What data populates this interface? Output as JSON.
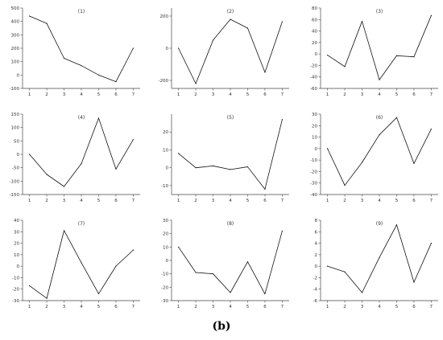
{
  "caption": "(b)",
  "chart_data": [
    {
      "type": "line",
      "title": "(1)",
      "x": [
        1,
        2,
        3,
        4,
        5,
        6,
        7
      ],
      "values": [
        440,
        385,
        125,
        70,
        0,
        -50,
        200
      ],
      "ylim": [
        -100,
        500
      ],
      "yticks": [
        -100,
        0,
        100,
        200,
        300,
        400,
        500
      ],
      "ytick_labels": [
        "-100",
        "0",
        "100",
        "200",
        "300",
        "400",
        "500"
      ],
      "xticks": [
        1,
        2,
        3,
        4,
        5,
        6,
        7
      ]
    },
    {
      "type": "line",
      "title": "(2)",
      "x": [
        1,
        2,
        3,
        4,
        5,
        6,
        7
      ],
      "values": [
        0,
        -220,
        50,
        180,
        125,
        -150,
        165
      ],
      "ylim": [
        -250,
        250
      ],
      "yticks": [
        -200,
        0,
        200
      ],
      "ytick_labels": [
        "-200",
        "0",
        "200"
      ],
      "xticks": [
        1,
        2,
        3,
        4,
        5,
        6,
        7
      ]
    },
    {
      "type": "line",
      "title": "(3)",
      "x": [
        1,
        2,
        3,
        4,
        5,
        6,
        7
      ],
      "values": [
        -2,
        -22,
        57,
        -45,
        -3,
        -5,
        67
      ],
      "ylim": [
        -60,
        80
      ],
      "yticks": [
        -60,
        -40,
        -20,
        0,
        20,
        40,
        60,
        80
      ],
      "ytick_labels": [
        "-60",
        "-40",
        "-20",
        "0",
        "20",
        "40",
        "60",
        "80"
      ],
      "xticks": [
        1,
        2,
        3,
        4,
        5,
        6,
        7
      ]
    },
    {
      "type": "line",
      "title": "(4)",
      "x": [
        1,
        2,
        3,
        4,
        5,
        6,
        7
      ],
      "values": [
        0,
        -75,
        -120,
        -35,
        135,
        -55,
        55
      ],
      "ylim": [
        -150,
        150
      ],
      "yticks": [
        -150,
        -100,
        -50,
        0,
        50,
        100,
        150
      ],
      "ytick_labels": [
        "-150",
        "-100",
        "-50",
        "0",
        "50",
        "100",
        "150"
      ],
      "xticks": [
        1,
        2,
        3,
        4,
        5,
        6,
        7
      ]
    },
    {
      "type": "line",
      "title": "(5)",
      "x": [
        1,
        2,
        3,
        4,
        5,
        6,
        7
      ],
      "values": [
        8,
        0,
        1,
        -1,
        0.5,
        -12,
        27
      ],
      "ylim": [
        -15,
        30
      ],
      "yticks": [
        -10,
        0,
        10,
        20
      ],
      "ytick_labels": [
        "-10",
        "0",
        "10",
        "20"
      ],
      "xticks": [
        1,
        2,
        3,
        4,
        5,
        6,
        7
      ]
    },
    {
      "type": "line",
      "title": "(6)",
      "x": [
        1,
        2,
        3,
        4,
        5,
        6,
        7
      ],
      "values": [
        0,
        -32,
        -12,
        12,
        27,
        -13,
        17
      ],
      "ylim": [
        -40,
        30
      ],
      "yticks": [
        -40,
        -30,
        -20,
        -10,
        0,
        10,
        20,
        30
      ],
      "ytick_labels": [
        "-40",
        "-30",
        "-20",
        "-10",
        "0",
        "10",
        "20",
        "30"
      ],
      "xticks": [
        1,
        2,
        3,
        4,
        5,
        6,
        7
      ]
    },
    {
      "type": "line",
      "title": "(7)",
      "x": [
        1,
        2,
        3,
        4,
        5,
        6,
        7
      ],
      "values": [
        -17,
        -28,
        31,
        3,
        -24,
        0,
        14
      ],
      "ylim": [
        -30,
        40
      ],
      "yticks": [
        -30,
        -20,
        -10,
        0,
        10,
        20,
        30,
        40
      ],
      "ytick_labels": [
        "-30",
        "-20",
        "-10",
        "0",
        "10",
        "20",
        "30",
        "40"
      ],
      "xticks": [
        1,
        2,
        3,
        4,
        5,
        6,
        7
      ]
    },
    {
      "type": "line",
      "title": "(8)",
      "x": [
        1,
        2,
        3,
        4,
        5,
        6,
        7
      ],
      "values": [
        10,
        -9,
        -10,
        -24,
        -1,
        -25,
        22
      ],
      "ylim": [
        -30,
        30
      ],
      "yticks": [
        -30,
        -20,
        -10,
        0,
        10,
        20,
        30
      ],
      "ytick_labels": [
        "-30",
        "-20",
        "-10",
        "0",
        "10",
        "20",
        "30"
      ],
      "xticks": [
        1,
        2,
        3,
        4,
        5,
        6,
        7
      ]
    },
    {
      "type": "line",
      "title": "(9)",
      "x": [
        1,
        2,
        3,
        4,
        5,
        6,
        7
      ],
      "values": [
        0,
        -1,
        -4.6,
        1.5,
        7.2,
        -2.8,
        4
      ],
      "ylim": [
        -6,
        8
      ],
      "yticks": [
        -6,
        -4,
        -2,
        0,
        2,
        4,
        6,
        8
      ],
      "ytick_labels": [
        "-6",
        "-4",
        "-2",
        "0",
        "2",
        "4",
        "6",
        "8"
      ],
      "xticks": [
        1,
        2,
        3,
        4,
        5,
        6,
        7
      ]
    }
  ]
}
